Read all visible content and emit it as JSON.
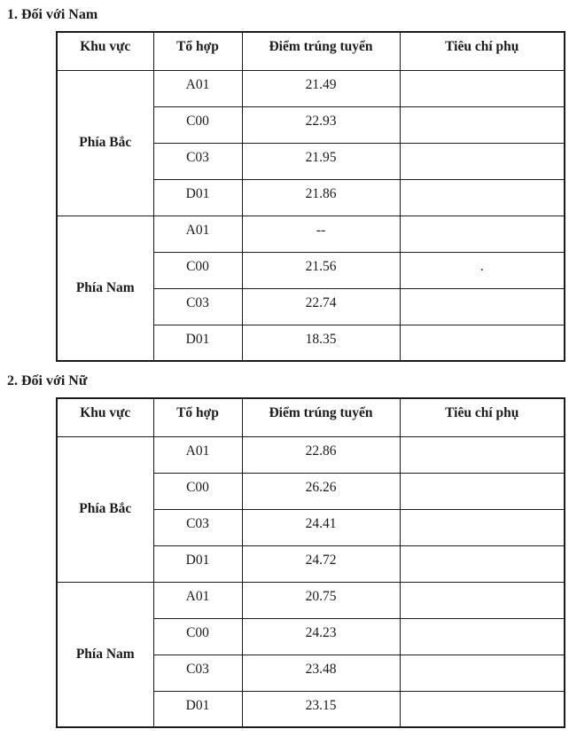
{
  "page": {
    "background_color": "#ffffff",
    "text_color": "#1b1b1b",
    "border_color": "#1b1b1b"
  },
  "sections": [
    {
      "heading": "1. Đối với Nam",
      "table": {
        "headers": [
          "Khu vực",
          "Tổ hợp",
          "Điểm trúng tuyển",
          "Tiêu chí phụ"
        ],
        "groups": [
          {
            "region": "Phía Bắc",
            "rows": [
              {
                "combo": "A01",
                "score": "21.49",
                "note": ""
              },
              {
                "combo": "C00",
                "score": "22.93",
                "note": ""
              },
              {
                "combo": "C03",
                "score": "21.95",
                "note": ""
              },
              {
                "combo": "D01",
                "score": "21.86",
                "note": ""
              }
            ]
          },
          {
            "region": "Phía Nam",
            "rows": [
              {
                "combo": "A01",
                "score": "--",
                "note": ""
              },
              {
                "combo": "C00",
                "score": "21.56",
                "note": "."
              },
              {
                "combo": "C03",
                "score": "22.74",
                "note": ""
              },
              {
                "combo": "D01",
                "score": "18.35",
                "note": ""
              }
            ]
          }
        ]
      }
    },
    {
      "heading": "2. Đối với Nữ",
      "table": {
        "headers": [
          "Khu vực",
          "Tổ hợp",
          "Điểm trúng tuyển",
          "Tiêu chí phụ"
        ],
        "groups": [
          {
            "region": "Phía Bắc",
            "rows": [
              {
                "combo": "A01",
                "score": "22.86",
                "note": ""
              },
              {
                "combo": "C00",
                "score": "26.26",
                "note": ""
              },
              {
                "combo": "C03",
                "score": "24.41",
                "note": ""
              },
              {
                "combo": "D01",
                "score": "24.72",
                "note": ""
              }
            ]
          },
          {
            "region": "Phía Nam",
            "rows": [
              {
                "combo": "A01",
                "score": "20.75",
                "note": ""
              },
              {
                "combo": "C00",
                "score": "24.23",
                "note": ""
              },
              {
                "combo": "C03",
                "score": "23.48",
                "note": ""
              },
              {
                "combo": "D01",
                "score": "23.15",
                "note": ""
              }
            ]
          }
        ]
      }
    }
  ]
}
